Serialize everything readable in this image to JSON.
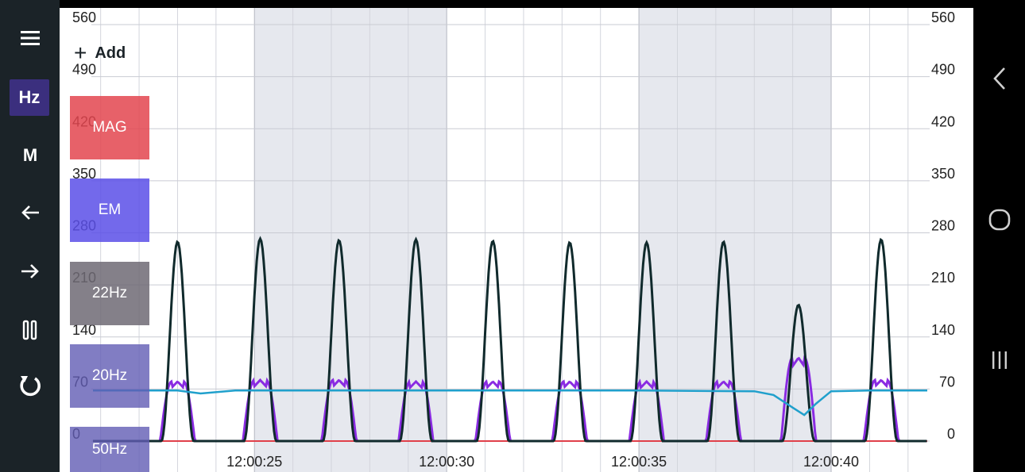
{
  "sidebar": {
    "menu_icon": "hamburger-icon",
    "hz_label": "Hz",
    "m_label": "M",
    "back_icon": "arrow-left-icon",
    "forward_icon": "arrow-right-icon",
    "pause_icon": "pause-icon",
    "reset_icon": "refresh-icon"
  },
  "add_label": "Add",
  "channels": [
    {
      "label": "MAG",
      "color": "#e3454f"
    },
    {
      "label": "EM",
      "color": "#5a4fe8"
    },
    {
      "label": "22Hz",
      "color": "#7a7780"
    },
    {
      "label": "20Hz",
      "color": "#6f69b9"
    },
    {
      "label": "50Hz",
      "color": "#6f69b9"
    }
  ],
  "nav": {
    "back_icon": "chevron-left-icon",
    "home_icon": "home-circle-icon",
    "recents_icon": "recents-icon"
  },
  "chart_data": {
    "type": "line",
    "ylim": [
      0,
      560
    ],
    "y_ticks": [
      "0",
      "70",
      "140",
      "210",
      "280",
      "350",
      "420",
      "490",
      "560"
    ],
    "x_ticks": [
      {
        "t": 25,
        "label": "12:00:25"
      },
      {
        "t": 30,
        "label": "12:00:30"
      },
      {
        "t": 35,
        "label": "12:00:35"
      },
      {
        "t": 40,
        "label": "12:00:40"
      }
    ],
    "xlim": [
      20.8,
      42.5
    ],
    "shaded_bands": [
      [
        25,
        30
      ],
      [
        35,
        40
      ]
    ],
    "colors": {
      "black": "#102a2c",
      "purple": "#8a2be2",
      "cyan": "#20a0cc",
      "red": "#e0404a"
    },
    "series_black": {
      "color": "#102a2c",
      "peaks": [
        [
          23.0,
          268
        ],
        [
          25.15,
          272
        ],
        [
          27.2,
          270
        ],
        [
          29.2,
          271
        ],
        [
          31.2,
          269
        ],
        [
          33.2,
          267
        ],
        [
          35.2,
          267
        ],
        [
          37.2,
          268
        ],
        [
          39.15,
          183
        ],
        [
          41.3,
          271
        ]
      ]
    },
    "series_purple": {
      "color": "#8a2be2",
      "peaks": [
        [
          23.0,
          80
        ],
        [
          25.15,
          82
        ],
        [
          27.2,
          82
        ],
        [
          29.2,
          80
        ],
        [
          31.2,
          80
        ],
        [
          33.2,
          80
        ],
        [
          35.2,
          80
        ],
        [
          37.2,
          80
        ],
        [
          39.15,
          112
        ],
        [
          41.3,
          82
        ]
      ]
    },
    "series_cyan": {
      "color": "#20a0cc",
      "points": [
        [
          20.8,
          68
        ],
        [
          23.0,
          68
        ],
        [
          23.6,
          64
        ],
        [
          24.5,
          68
        ],
        [
          30,
          68
        ],
        [
          35,
          68
        ],
        [
          38,
          67
        ],
        [
          38.5,
          62
        ],
        [
          39.0,
          45
        ],
        [
          39.3,
          35
        ],
        [
          39.6,
          50
        ],
        [
          40.0,
          67
        ],
        [
          41,
          68
        ],
        [
          42.5,
          68
        ]
      ]
    },
    "series_red": {
      "color": "#e0404a",
      "value": 0
    }
  }
}
